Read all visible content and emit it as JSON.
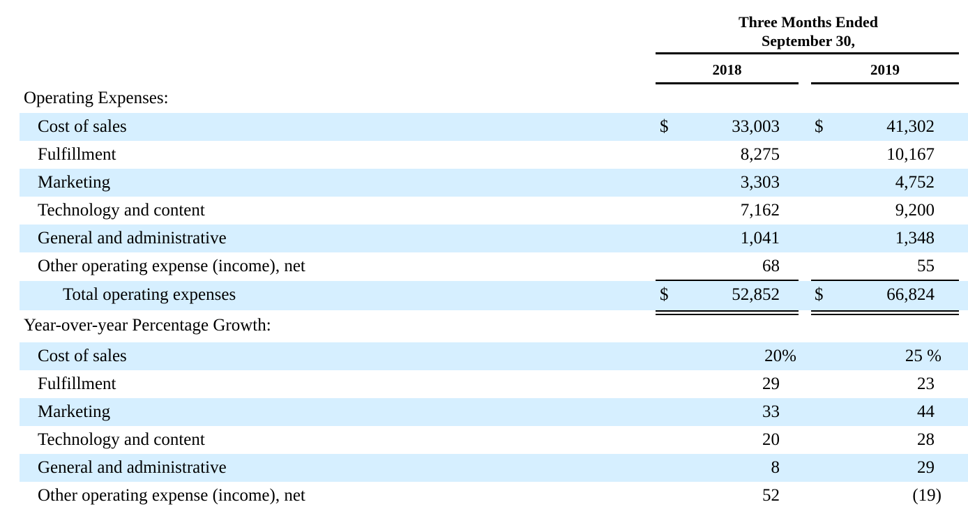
{
  "header": {
    "period_line1": "Three Months Ended",
    "period_line2": "September 30,",
    "years": [
      "2018",
      "2019"
    ]
  },
  "operating_expenses": {
    "section_label": "Operating Expenses:",
    "currency": "$",
    "rows": [
      {
        "label": "Cost of sales",
        "y2018": "33,003",
        "y2019": "41,302"
      },
      {
        "label": "Fulfillment",
        "y2018": "8,275",
        "y2019": "10,167"
      },
      {
        "label": "Marketing",
        "y2018": "3,303",
        "y2019": "4,752"
      },
      {
        "label": "Technology and content",
        "y2018": "7,162",
        "y2019": "9,200"
      },
      {
        "label": "General and administrative",
        "y2018": "1,041",
        "y2019": "1,348"
      },
      {
        "label": "Other operating expense (income), net",
        "y2018": "68",
        "y2019": "55"
      }
    ],
    "total": {
      "label": "Total operating expenses",
      "y2018": "52,852",
      "y2019": "66,824"
    }
  },
  "growth": {
    "section_label": "Year-over-year Percentage Growth:",
    "rows": [
      {
        "label": "Cost of sales",
        "y2018": "20%",
        "y2019": "25 %"
      },
      {
        "label": "Fulfillment",
        "y2018": "29",
        "y2019": "23"
      },
      {
        "label": "Marketing",
        "y2018": "33",
        "y2019": "44"
      },
      {
        "label": "Technology and content",
        "y2018": "20",
        "y2019": "28"
      },
      {
        "label": "General and administrative",
        "y2018": "8",
        "y2019": "29"
      },
      {
        "label": "Other operating expense (income), net",
        "y2018": "52",
        "y2019": "(19)"
      }
    ]
  }
}
